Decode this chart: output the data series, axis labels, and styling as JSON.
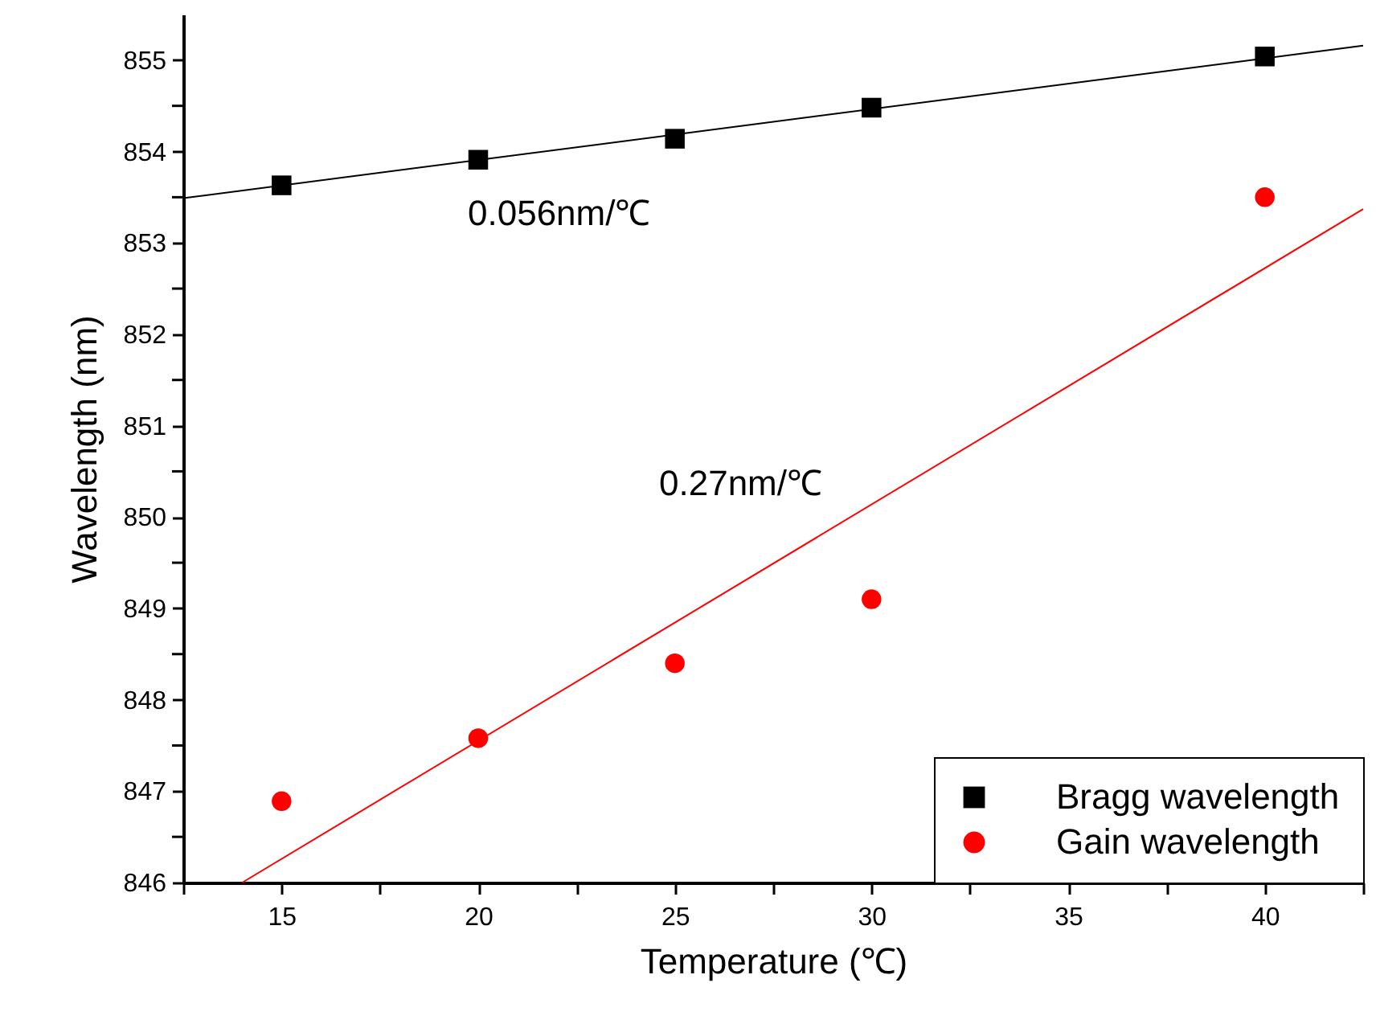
{
  "chart_data": {
    "type": "scatter",
    "xlabel": "Temperature (℃)",
    "ylabel": "Wavelength (nm)",
    "x": [
      15,
      20,
      25,
      30,
      40
    ],
    "series": [
      {
        "name": "Bragg wavelength",
        "marker": "square",
        "color": "#000000",
        "values": [
          853.63,
          853.91,
          854.14,
          854.48,
          855.04
        ]
      },
      {
        "name": "Gain wavelength",
        "marker": "circle",
        "color": "#ff0000",
        "values": [
          846.89,
          847.58,
          848.4,
          849.1,
          853.5
        ]
      },
      {
        "type": "line",
        "color": "#000000",
        "x": [
          12.5,
          42.5
        ],
        "values": [
          853.49,
          855.16
        ]
      },
      {
        "type": "line",
        "color": "#ff0000",
        "x": [
          14.0,
          42.5
        ],
        "values": [
          846.0,
          853.37
        ]
      }
    ],
    "annotations": [
      "0.056nm/℃",
      "0.27nm/℃"
    ],
    "xlim": [
      12.5,
      42.5
    ],
    "xticks": [
      {
        "value": 12.5,
        "label": null
      },
      15,
      {
        "value": 17.5,
        "label": null
      },
      20,
      {
        "value": 22.5,
        "label": null
      },
      25,
      {
        "value": 27.5,
        "label": null
      },
      30,
      {
        "value": 32.5,
        "label": null
      },
      35,
      {
        "value": 37.5,
        "label": null
      },
      40,
      {
        "value": 42.5,
        "label": null
      }
    ],
    "ylim": [
      846,
      855.5
    ],
    "yticks": [
      846,
      {
        "value": 846.5,
        "label": null
      },
      847,
      {
        "value": 847.5,
        "label": null
      },
      848,
      {
        "value": 848.5,
        "label": null
      },
      849,
      {
        "value": 849.5,
        "label": null
      },
      850,
      {
        "value": 850.5,
        "label": null
      },
      851,
      {
        "value": 851.5,
        "label": null
      },
      852,
      {
        "value": 852.5,
        "label": null
      },
      853,
      {
        "value": 853.5,
        "label": null
      },
      854,
      {
        "value": 854.5,
        "label": null
      },
      855
    ],
    "grid": false,
    "legend": "bottom right"
  }
}
